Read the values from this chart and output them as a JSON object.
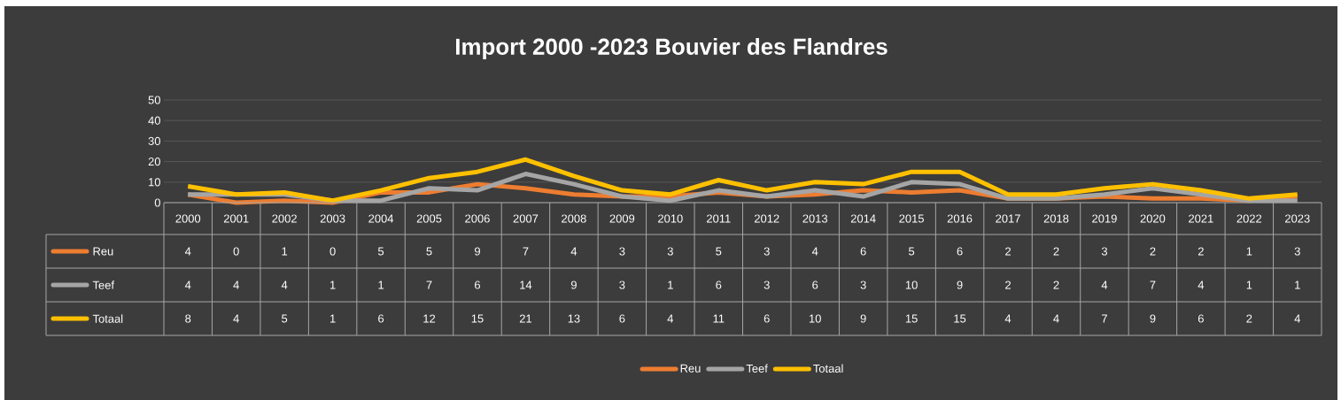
{
  "chart_data": {
    "type": "line",
    "title": "Import 2000 -2023 Bouvier des Flandres",
    "categories": [
      "2000",
      "2001",
      "2002",
      "2003",
      "2004",
      "2005",
      "2006",
      "2007",
      "2008",
      "2009",
      "2010",
      "2011",
      "2012",
      "2013",
      "2014",
      "2015",
      "2016",
      "2017",
      "2018",
      "2019",
      "2020",
      "2021",
      "2022",
      "2023"
    ],
    "series": [
      {
        "name": "Reu",
        "color": "#ed7d31",
        "values": [
          4,
          0,
          1,
          0,
          5,
          5,
          9,
          7,
          4,
          3,
          3,
          5,
          3,
          4,
          6,
          5,
          6,
          2,
          2,
          3,
          2,
          2,
          1,
          3
        ]
      },
      {
        "name": "Teef",
        "color": "#a5a5a5",
        "values": [
          4,
          4,
          4,
          1,
          1,
          7,
          6,
          14,
          9,
          3,
          1,
          6,
          3,
          6,
          3,
          10,
          9,
          2,
          2,
          4,
          7,
          4,
          1,
          1
        ]
      },
      {
        "name": "Totaal",
        "color": "#ffc000",
        "values": [
          8,
          4,
          5,
          1,
          6,
          12,
          15,
          21,
          13,
          6,
          4,
          11,
          6,
          10,
          9,
          15,
          15,
          4,
          4,
          7,
          9,
          6,
          2,
          4
        ]
      }
    ],
    "ylim": [
      0,
      50
    ],
    "yticks": [
      0,
      10,
      20,
      30,
      40,
      50
    ],
    "grid": "y",
    "legend": "bottom",
    "data_labels": true,
    "marker": "none",
    "line_style": "solid"
  }
}
